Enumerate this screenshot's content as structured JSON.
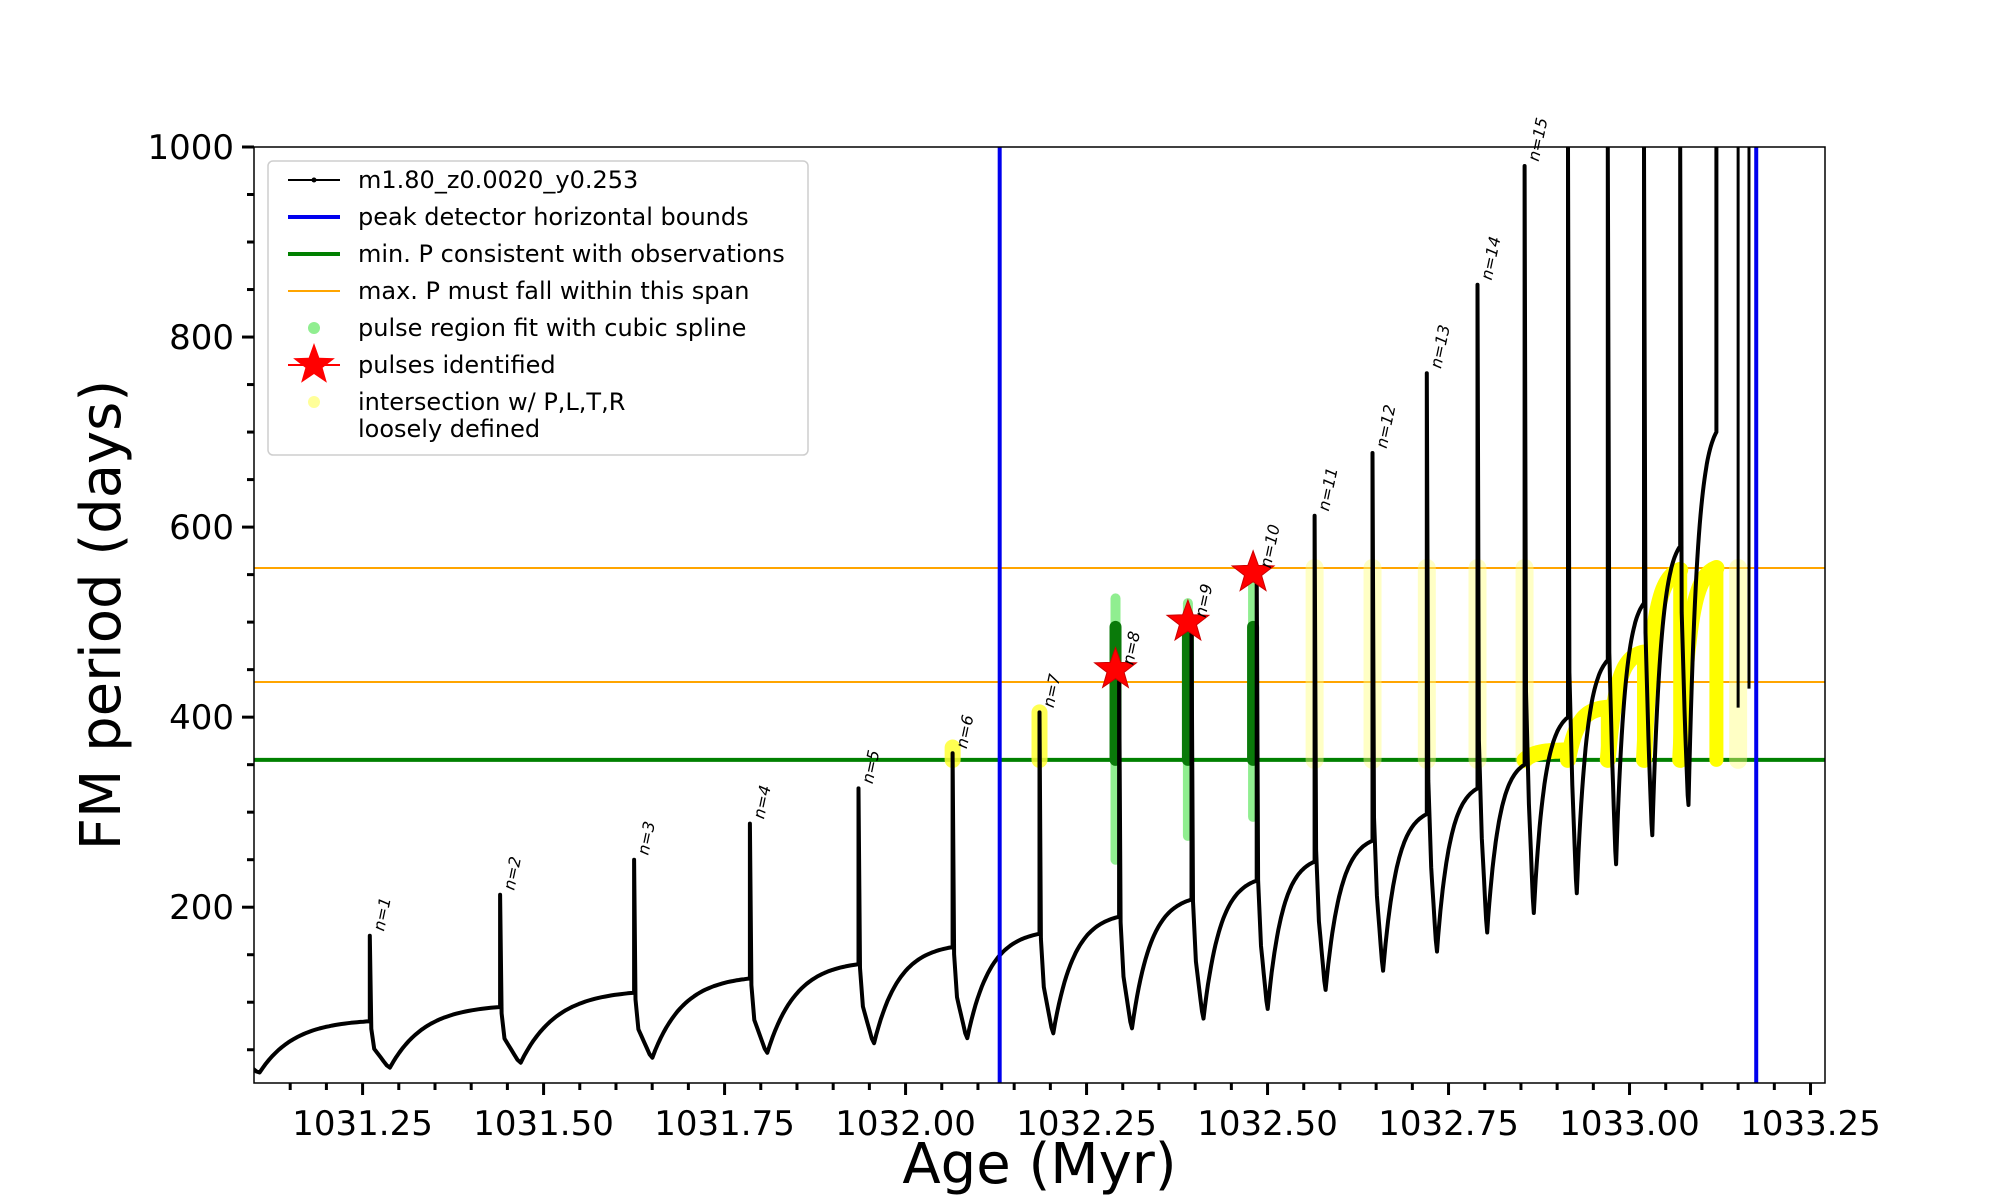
{
  "chart_data": {
    "type": "line",
    "title": "",
    "xlabel": "Age (Myr)",
    "ylabel": "FM period (days)",
    "xlim": [
      1031.1,
      1033.27
    ],
    "ylim": [
      15,
      1000
    ],
    "x_ticks": [
      1031.25,
      1031.5,
      1031.75,
      1032.0,
      1032.25,
      1032.5,
      1032.75,
      1033.0,
      1033.25
    ],
    "x_tick_labels": [
      "1031.25",
      "1031.50",
      "1031.75",
      "1032.00",
      "1032.25",
      "1032.50",
      "1032.75",
      "1033.00",
      "1033.25"
    ],
    "y_ticks": [
      200,
      400,
      600,
      800,
      1000
    ],
    "y_tick_labels": [
      "200",
      "400",
      "600",
      "800",
      "1000"
    ],
    "grid": false,
    "legend_position": "top-left",
    "legend": [
      {
        "label": "m1.80_z0.0020_y0.253",
        "style": "line-marker",
        "color": "#000000"
      },
      {
        "label": "peak detector horizontal bounds",
        "style": "line",
        "color": "#0000ee"
      },
      {
        "label": "min. P consistent with observations",
        "style": "line",
        "color": "#008000"
      },
      {
        "label": "max. P must fall within this span",
        "style": "thin-line",
        "color": "#ffa500"
      },
      {
        "label": "pulse region fit with cubic spline",
        "style": "dot",
        "color": "#90ee90"
      },
      {
        "label": "pulses identified",
        "style": "star",
        "color": "#ff0000"
      },
      {
        "label": "intersection w/ P,L,T,R\nloosely defined",
        "style": "dot",
        "color": "#ffff99"
      }
    ],
    "vertical_bounds": [
      1032.13,
      1033.175
    ],
    "min_period": 355,
    "max_period_span": [
      437,
      557
    ],
    "pulses": [
      {
        "n": "n=1",
        "x": 1031.26,
        "base": 80,
        "peak": 170,
        "min": 30
      },
      {
        "n": "n=2",
        "x": 1031.44,
        "base": 95,
        "peak": 213,
        "min": 35
      },
      {
        "n": "n=3",
        "x": 1031.625,
        "base": 110,
        "peak": 250,
        "min": 40
      },
      {
        "n": "n=4",
        "x": 1031.785,
        "base": 125,
        "peak": 288,
        "min": 45
      },
      {
        "n": "n=5",
        "x": 1031.935,
        "base": 140,
        "peak": 325,
        "min": 55
      },
      {
        "n": "n=6",
        "x": 1032.065,
        "base": 158,
        "peak": 362,
        "min": 60
      },
      {
        "n": "n=7",
        "x": 1032.185,
        "base": 172,
        "peak": 405,
        "min": 65
      },
      {
        "n": "n=8",
        "x": 1032.295,
        "base": 190,
        "peak": 450,
        "min": 70
      },
      {
        "n": "n=9",
        "x": 1032.395,
        "base": 208,
        "peak": 500,
        "min": 80
      },
      {
        "n": "n=10",
        "x": 1032.485,
        "base": 228,
        "peak": 552,
        "min": 90
      },
      {
        "n": "n=11",
        "x": 1032.565,
        "base": 248,
        "peak": 612,
        "min": 110
      },
      {
        "n": "n=12",
        "x": 1032.645,
        "base": 270,
        "peak": 678,
        "min": 130
      },
      {
        "n": "n=13",
        "x": 1032.72,
        "base": 298,
        "peak": 762,
        "min": 150
      },
      {
        "n": "n=14",
        "x": 1032.79,
        "base": 325,
        "peak": 855,
        "min": 170
      },
      {
        "n": "n=15",
        "x": 1032.855,
        "base": 350,
        "peak": 980,
        "min": 190
      }
    ],
    "late_pulses": [
      {
        "x": 1032.915,
        "base": 400,
        "peak": 1000,
        "min": 210
      },
      {
        "x": 1032.97,
        "base": 460,
        "peak": 1000,
        "min": 240
      },
      {
        "x": 1033.02,
        "base": 520,
        "peak": 1000,
        "min": 270
      },
      {
        "x": 1033.07,
        "base": 580,
        "peak": 1000,
        "min": 300
      },
      {
        "x": 1033.12,
        "base": 700,
        "peak": 1000,
        "min": 330
      }
    ],
    "initial_flash": {
      "x": 1031.08,
      "peak": 110,
      "min": 25
    },
    "identified_pulse_stars": [
      {
        "x": 1032.29,
        "y": 450
      },
      {
        "x": 1032.39,
        "y": 500
      },
      {
        "x": 1032.48,
        "y": 552
      }
    ],
    "spline_regions": [
      {
        "x": 1032.29,
        "y_low": 250,
        "y_high": 525,
        "green_low": 355,
        "green_high": 495
      },
      {
        "x": 1032.39,
        "y_low": 275,
        "y_high": 520,
        "green_low": 355,
        "green_high": 495
      },
      {
        "x": 1032.48,
        "y_low": 295,
        "y_high": 555,
        "green_low": 355,
        "green_high": 495
      }
    ],
    "loose_regions": [
      {
        "x": 1032.065,
        "y_low": 355,
        "y_high": 368
      },
      {
        "x": 1032.185,
        "y_low": 355,
        "y_high": 405
      },
      {
        "x": 1032.565,
        "y_low": 355,
        "y_high": 557
      },
      {
        "x": 1032.645,
        "y_low": 355,
        "y_high": 557
      },
      {
        "x": 1032.72,
        "y_low": 355,
        "y_high": 557
      },
      {
        "x": 1032.79,
        "y_low": 355,
        "y_high": 557
      },
      {
        "x": 1032.855,
        "y_low": 355,
        "y_high": 557
      },
      {
        "x": 1033.15,
        "y_low": 355,
        "y_high": 557
      }
    ],
    "loose_arcs": [
      {
        "x0": 1032.855,
        "x1": 1032.915,
        "y0": 355,
        "y1": 365
      },
      {
        "x0": 1032.915,
        "x1": 1032.97,
        "y0": 355,
        "y1": 410
      },
      {
        "x0": 1032.97,
        "x1": 1033.02,
        "y0": 355,
        "y1": 468
      },
      {
        "x0": 1033.02,
        "x1": 1033.07,
        "y0": 355,
        "y1": 555
      },
      {
        "x0": 1033.07,
        "x1": 1033.12,
        "y0": 355,
        "y1": 557
      }
    ]
  }
}
